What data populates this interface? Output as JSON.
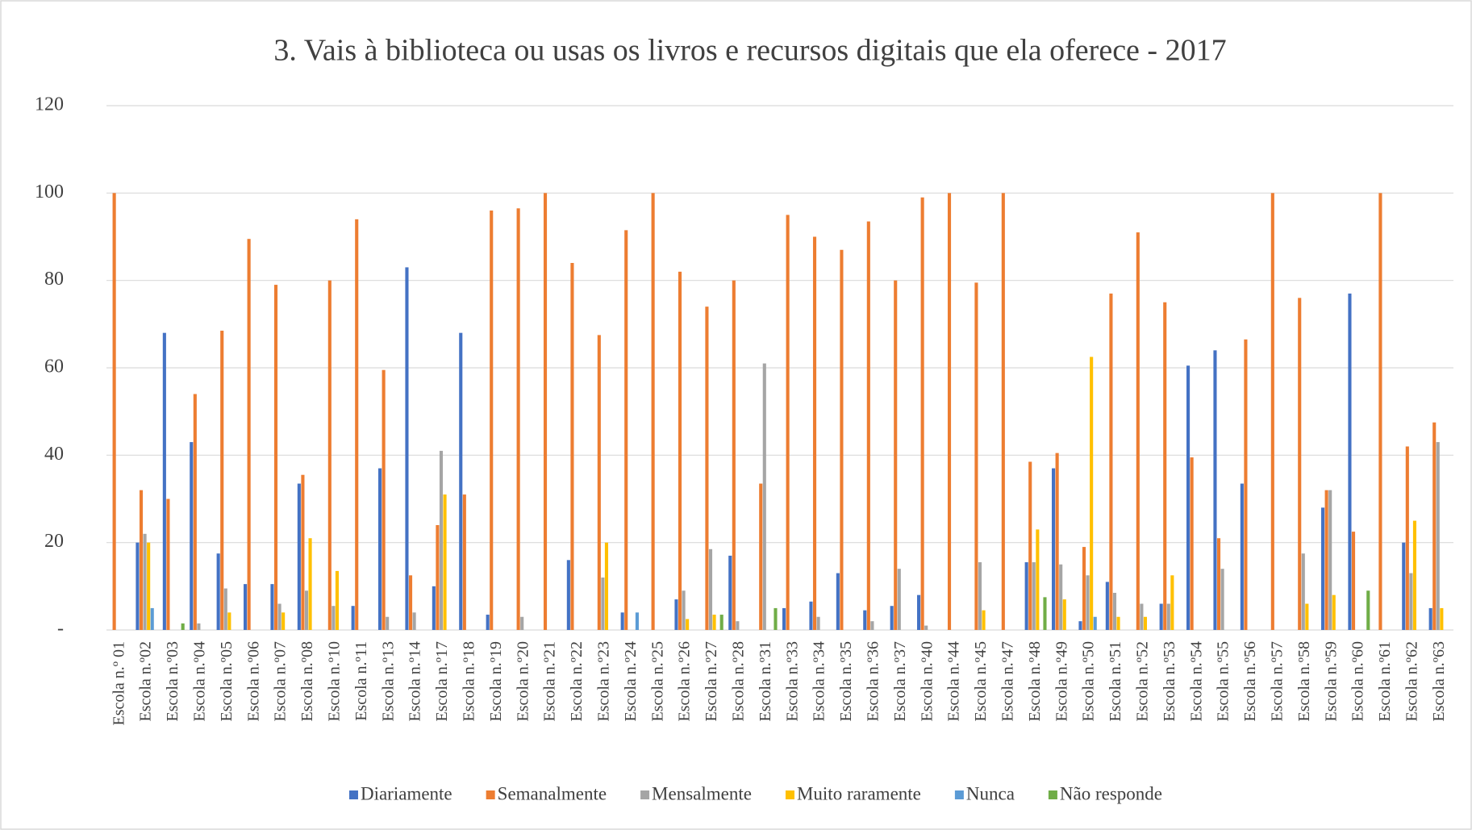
{
  "chart_data": {
    "type": "bar",
    "title": "3. Vais à biblioteca ou usas os livros e recursos digitais que ela oferece - 2017",
    "categories": [
      "Escola n.º 01",
      "Escola n.º02",
      "Escola n.º03",
      "Escola n.º04",
      "Escola n.º05",
      "Escola n.º06",
      "Escola n.º07",
      "Escola n.º08",
      "Escola n.º10",
      "Escola n.º11",
      "Escola n.º13",
      "Escola n.º14",
      "Escola n.º17",
      "Escola n.º18",
      "Escola n.º19",
      "Escola n.º20",
      "Escola n.º21",
      "Escola n.º22",
      "Escola n.º23",
      "Escola n.º24",
      "Escola n.º25",
      "Escola n.º26",
      "Escola n.º27",
      "Escola n.º28",
      "Escola n.º31",
      "Escola n.º33",
      "Escola n.º34",
      "Escola n.º35",
      "Escola n.º36",
      "Escola n.º37",
      "Escola n.º40",
      "Escola n.º44",
      "Escola n.º45",
      "Escola n.º47",
      "Escola n.º48",
      "Escola n.º49",
      "Escola n.º50",
      "Escola n.º51",
      "Escola n.º52",
      "Escola n.º53",
      "Escola n.º54",
      "Escola n.º55",
      "Escola n.º56",
      "Escola n.º57",
      "Escola n.º58",
      "Escola n.º59",
      "Escola n.º60",
      "Escola n.º61",
      "Escola n.º62",
      "Escola n.º63"
    ],
    "series": [
      {
        "name": "Diariamente",
        "color": "#4472c4",
        "values": [
          0,
          20,
          68,
          43,
          17.5,
          10.5,
          10.5,
          33.5,
          0,
          5.5,
          37,
          83,
          10,
          68,
          3.5,
          0,
          0,
          16,
          0,
          4,
          0,
          7,
          0,
          17,
          0,
          5,
          6.5,
          13,
          4.5,
          5.5,
          8,
          0,
          0,
          0,
          15.5,
          37,
          2,
          11,
          0,
          6,
          60.5,
          64,
          33.5,
          0,
          0,
          28,
          77,
          0,
          20,
          5
        ]
      },
      {
        "name": "Semanalmente",
        "color": "#ed7d31",
        "values": [
          100,
          32,
          30,
          54,
          68.5,
          89.5,
          79,
          35.5,
          80,
          94,
          59.5,
          12.5,
          24,
          31,
          96,
          96.5,
          100,
          84,
          67.5,
          91.5,
          100,
          82,
          74,
          80,
          33.5,
          95,
          90,
          87,
          93.5,
          80,
          99,
          100,
          79.5,
          100,
          38.5,
          40.5,
          19,
          77,
          91,
          75,
          39.5,
          21,
          66.5,
          100,
          76,
          32,
          22.5,
          100,
          42,
          47.5
        ]
      },
      {
        "name": "Mensalmente",
        "color": "#a5a5a5",
        "values": [
          0,
          22,
          0,
          1.5,
          9.5,
          0,
          6,
          9,
          5.5,
          0,
          3,
          4,
          41,
          0,
          0,
          3,
          0,
          0,
          12,
          0,
          0,
          9,
          18.5,
          2,
          61,
          0,
          3,
          0,
          2,
          14,
          1,
          0,
          15.5,
          0,
          15.5,
          15,
          12.5,
          8.5,
          6,
          6,
          0,
          14,
          0,
          0,
          17.5,
          32,
          0,
          0,
          13,
          43
        ]
      },
      {
        "name": "Muito raramente",
        "color": "#ffc000",
        "values": [
          0,
          20,
          0,
          0,
          4,
          0,
          4,
          21,
          13.5,
          0,
          0,
          0,
          31,
          0,
          0,
          0,
          0,
          0,
          20,
          0,
          0,
          2.5,
          3.5,
          0,
          0,
          0,
          0,
          0,
          0,
          0,
          0,
          0,
          4.5,
          0,
          23,
          7,
          62.5,
          3,
          3,
          12.5,
          0,
          0,
          0,
          0,
          6,
          8,
          0,
          0,
          25,
          5
        ]
      },
      {
        "name": "Nunca",
        "color": "#5b9bd5",
        "values": [
          0,
          5,
          0,
          0,
          0,
          0,
          0,
          0,
          0,
          0,
          0,
          0,
          0,
          0,
          0,
          0,
          0,
          0,
          0,
          4,
          0,
          0,
          0,
          0,
          0,
          0,
          0,
          0,
          0,
          0,
          0,
          0,
          0,
          0,
          0,
          0,
          3,
          0,
          0,
          0,
          0,
          0,
          0,
          0,
          0,
          0,
          0,
          0,
          0,
          0
        ]
      },
      {
        "name": "Não responde",
        "color": "#70ad47",
        "values": [
          0,
          0,
          1.5,
          0,
          0,
          0,
          0,
          0,
          0,
          0,
          0,
          0,
          0,
          0,
          0,
          0,
          0,
          0,
          0,
          0,
          0,
          0,
          3.5,
          0,
          5,
          0,
          0,
          0,
          0,
          0,
          0,
          0,
          0,
          0,
          7.5,
          0,
          0,
          0,
          0,
          0,
          0,
          0,
          0,
          0,
          0,
          0,
          9,
          0,
          0,
          0
        ]
      }
    ],
    "ylim": [
      0,
      120
    ],
    "yticks": [
      {
        "value": 0,
        "label": "-"
      },
      20,
      40,
      60,
      80,
      100,
      120
    ],
    "grid": true,
    "legend": "bottom"
  }
}
